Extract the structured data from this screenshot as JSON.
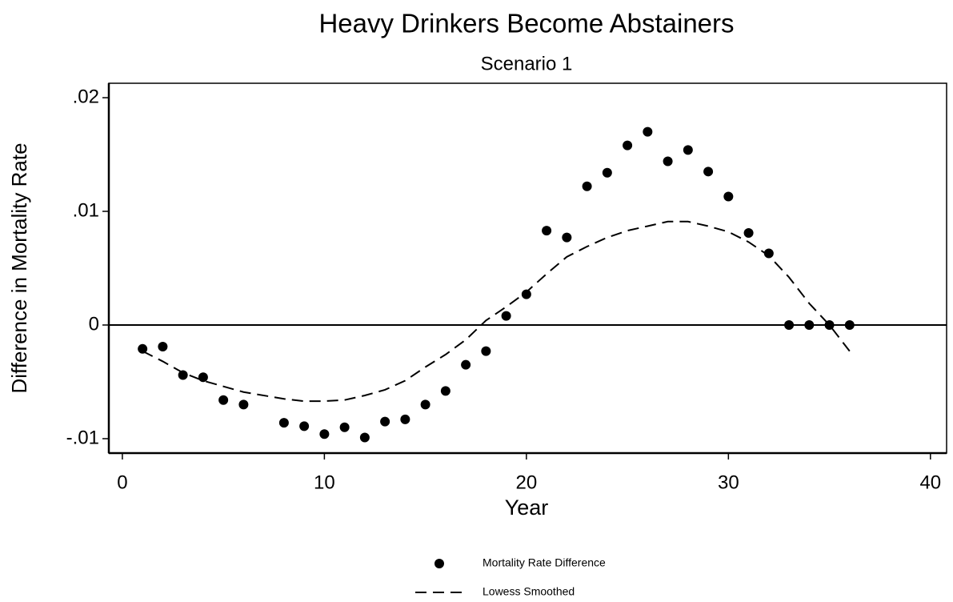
{
  "chart_data": {
    "type": "scatter",
    "title": "Heavy Drinkers Become Abstainers",
    "subtitle": "Scenario 1",
    "x_label": "Year",
    "y_label": "Difference in Mortality Rate",
    "x": [
      1,
      2,
      3,
      4,
      5,
      6,
      8,
      9,
      10,
      11,
      12,
      13,
      14,
      15,
      16,
      17,
      18,
      19,
      20,
      21,
      22,
      23,
      24,
      25,
      26,
      27,
      28,
      29,
      30,
      31,
      32,
      33,
      34,
      35,
      36
    ],
    "series": [
      {
        "name": "Mortality Rate Difference",
        "color": "#000000",
        "style": "markers",
        "values": [
          -0.0021,
          -0.0019,
          -0.0044,
          -0.0046,
          -0.0066,
          -0.007,
          -0.0086,
          -0.0089,
          -0.0096,
          -0.009,
          -0.0099,
          -0.0085,
          -0.0083,
          -0.007,
          -0.0058,
          -0.0035,
          -0.0023,
          0.0008,
          0.0027,
          0.0083,
          0.0077,
          0.0122,
          0.0134,
          0.0158,
          0.017,
          0.0144,
          0.0154,
          0.0135,
          0.0113,
          0.0081,
          0.0063,
          0,
          0,
          0,
          0
        ]
      },
      {
        "name": "Lowess Smoothed",
        "color": "#000000",
        "style": "dashed",
        "values": [
          -0.0023,
          -0.0032,
          -0.0042,
          -0.0049,
          -0.0054,
          -0.0059,
          -0.0065,
          -0.0067,
          -0.0067,
          -0.0066,
          -0.0062,
          -0.0057,
          -0.0049,
          -0.0037,
          -0.0026,
          -0.0013,
          0.0004,
          0.0016,
          0.0029,
          0.0045,
          0.006,
          0.0069,
          0.0077,
          0.0083,
          0.0087,
          0.0091,
          0.0091,
          0.0087,
          0.0082,
          0.0073,
          0.0061,
          0.0042,
          0.0019,
          0.0,
          -0.0023
        ]
      }
    ],
    "xlim": [
      -0.67,
      40.8
    ],
    "ylim": [
      -0.01127,
      0.02127
    ],
    "xticks": [
      0,
      10,
      20,
      30,
      40
    ],
    "yticks": [
      {
        "value": 0.02,
        "label": ".02"
      },
      {
        "value": 0.01,
        "label": ".01"
      },
      0,
      {
        "value": -0.01,
        "label": "-.01"
      }
    ],
    "hline": 0,
    "legend": "bottom"
  }
}
